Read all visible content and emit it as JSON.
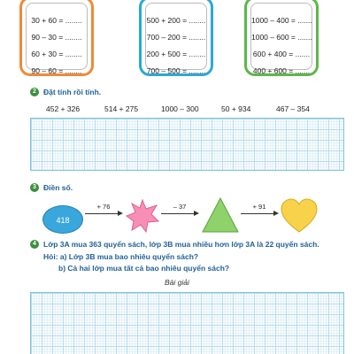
{
  "box1": {
    "rows": [
      "30 + 60 = ........",
      "90 – 30 = ........",
      "60 + 30 = ........",
      "90 – 60 = ........"
    ],
    "color": "#f08a35"
  },
  "box2": {
    "rows": [
      "500 + 200 = ........",
      "700 – 200 = ........",
      "200 + 500 = ........",
      "700 – 500 = ........"
    ],
    "color": "#2aa8d6"
  },
  "box3": {
    "rows": [
      "1000 – 400 = .......",
      "1000 – 600 = .......",
      "600 + 400 = .......",
      "400 + 600 = ......."
    ],
    "color": "#5bb848"
  },
  "q2": {
    "number": "2",
    "title": "Đặt tính rồi tính.",
    "expressions": [
      "452 + 326",
      "514 + 275",
      "1000 – 300",
      "50 + 934",
      "467 – 354"
    ]
  },
  "q3": {
    "number": "3",
    "title": "Điền số.",
    "start_value": "418",
    "operations": [
      "+ 76",
      "– 37",
      "+ 91"
    ]
  },
  "q4": {
    "number": "4",
    "problem": "Lớp 3A mua 363 quyển sách, lớp 3B mua nhiều hơn lớp 3A là 22 quyển sách.",
    "question_a": "Hỏi: a) Lớp 3B mua bao nhiêu quyển sách?",
    "question_b": "b) Cả hai lớp mua tất cả bao nhiêu quyển sách?",
    "solution_label": "Bài giải"
  },
  "colors": {
    "heading": "#1f5f98",
    "badge": "#3b8f3f",
    "grid": "#7fc3e0",
    "oval": "#3aa7dc",
    "star": "#f78fb5",
    "triangle": "#8fd16a",
    "heart": "#f7d24a"
  }
}
